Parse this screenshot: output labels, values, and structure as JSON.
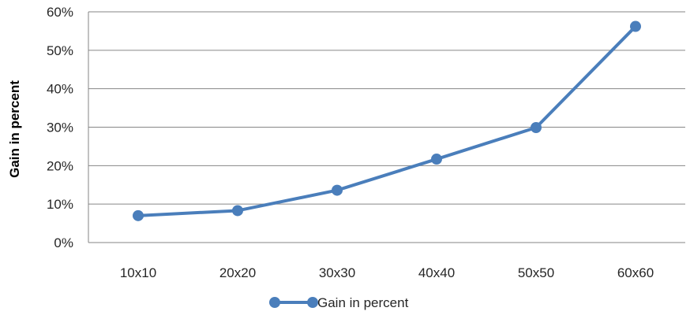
{
  "chart_data": {
    "type": "line",
    "categories": [
      "10x10",
      "20x20",
      "30x30",
      "40x40",
      "50x50",
      "60x60"
    ],
    "series": [
      {
        "name": "Gain in percent",
        "values": [
          7,
          8.3,
          13.6,
          21.7,
          29.9,
          56.2
        ],
        "color": "#4a7ebb"
      }
    ],
    "ylabel": "Gain in percent",
    "xlabel": "",
    "ylim": [
      0,
      60
    ],
    "yticks": [
      0,
      10,
      20,
      30,
      40,
      50,
      60
    ],
    "ytick_labels": [
      "0%",
      "10%",
      "20%",
      "30%",
      "40%",
      "50%",
      "60%"
    ],
    "grid": true,
    "legend_position": "bottom"
  }
}
